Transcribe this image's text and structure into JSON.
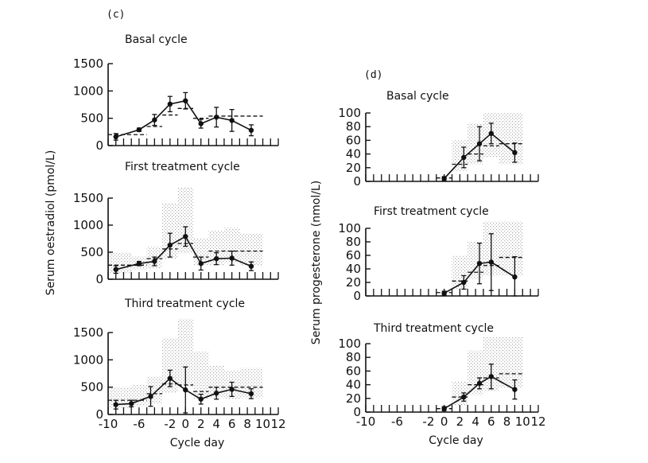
{
  "chart_data": [
    {
      "panel": "(c)",
      "type": "line",
      "title": "Basal cycle",
      "ylabel": "Serum oestradiol (pmol/L)",
      "xlabel": "",
      "ylim": [
        0,
        1500
      ],
      "yticks": [
        0,
        500,
        1000,
        1500
      ],
      "xlim": [
        -10,
        12
      ],
      "points": [
        {
          "x": -9,
          "y": 160,
          "err": 60
        },
        {
          "x": -6,
          "y": 290,
          "err": 30
        },
        {
          "x": -4,
          "y": 470,
          "err": 100
        },
        {
          "x": -2,
          "y": 760,
          "err": 140
        },
        {
          "x": 0,
          "y": 820,
          "err": 150
        },
        {
          "x": 2,
          "y": 400,
          "err": 80
        },
        {
          "x": 4,
          "y": 520,
          "err": 180
        },
        {
          "x": 6,
          "y": 460,
          "err": 200
        },
        {
          "x": 8.5,
          "y": 280,
          "err": 100
        }
      ],
      "dashed_steps": [
        {
          "x0": -10,
          "x1": -5,
          "y": 200
        },
        {
          "x0": -5,
          "x1": -3,
          "y": 350
        },
        {
          "x0": -3,
          "x1": -1,
          "y": 560
        },
        {
          "x0": -1,
          "x1": 1,
          "y": 680
        },
        {
          "x0": 1,
          "x1": 3,
          "y": 500
        },
        {
          "x0": 3,
          "x1": 10,
          "y": 540
        }
      ],
      "shaded": []
    },
    {
      "panel": "",
      "type": "line",
      "title": "First treatment cycle",
      "ylabel": "",
      "xlabel": "",
      "ylim": [
        0,
        1500
      ],
      "yticks": [
        0,
        500,
        1000,
        1500
      ],
      "xlim": [
        -10,
        12
      ],
      "points": [
        {
          "x": -9,
          "y": 180,
          "err": 70
        },
        {
          "x": -6,
          "y": 290,
          "err": 40
        },
        {
          "x": -4,
          "y": 330,
          "err": 80
        },
        {
          "x": -2,
          "y": 630,
          "err": 220
        },
        {
          "x": 0,
          "y": 790,
          "err": 180
        },
        {
          "x": 2,
          "y": 290,
          "err": 120
        },
        {
          "x": 4,
          "y": 380,
          "err": 110
        },
        {
          "x": 6,
          "y": 390,
          "err": 130
        },
        {
          "x": 8.5,
          "y": 240,
          "err": 80
        }
      ],
      "dashed_steps": [
        {
          "x0": -10,
          "x1": -5,
          "y": 260
        },
        {
          "x0": -5,
          "x1": -3,
          "y": 380
        },
        {
          "x0": -3,
          "x1": -1,
          "y": 560
        },
        {
          "x0": -1,
          "x1": 1,
          "y": 660
        },
        {
          "x0": 1,
          "x1": 3,
          "y": 410
        },
        {
          "x0": 3,
          "x1": 10,
          "y": 520
        }
      ],
      "shaded": [
        {
          "x0": -10,
          "x1": -7,
          "y0": 100,
          "y1": 500
        },
        {
          "x0": -7,
          "x1": -5,
          "y0": 180,
          "y1": 420
        },
        {
          "x0": -5,
          "x1": -3,
          "y0": 200,
          "y1": 600
        },
        {
          "x0": -3,
          "x1": -1,
          "y0": 380,
          "y1": 1400
        },
        {
          "x0": -1,
          "x1": 1,
          "y0": 480,
          "y1": 1700
        },
        {
          "x0": 1,
          "x1": 3,
          "y0": 250,
          "y1": 750
        },
        {
          "x0": 3,
          "x1": 5,
          "y0": 250,
          "y1": 900
        },
        {
          "x0": 5,
          "x1": 7,
          "y0": 300,
          "y1": 950
        },
        {
          "x0": 7,
          "x1": 10,
          "y0": 250,
          "y1": 850
        }
      ]
    },
    {
      "panel": "",
      "type": "line",
      "title": "Third treatment cycle",
      "ylabel": "",
      "xlabel": "Cycle day",
      "ylim": [
        0,
        1500
      ],
      "yticks": [
        0,
        500,
        1000,
        1500
      ],
      "xlim": [
        -10,
        12
      ],
      "xticks": [
        -10,
        -6,
        -2,
        0,
        2,
        4,
        6,
        8,
        10,
        12
      ],
      "points": [
        {
          "x": -9,
          "y": 180,
          "err": 80
        },
        {
          "x": -7,
          "y": 200,
          "err": 60
        },
        {
          "x": -4.5,
          "y": 330,
          "err": 180
        },
        {
          "x": -2,
          "y": 660,
          "err": 150
        },
        {
          "x": 0,
          "y": 450,
          "err": 420
        },
        {
          "x": 2,
          "y": 280,
          "err": 90
        },
        {
          "x": 4,
          "y": 390,
          "err": 110
        },
        {
          "x": 6,
          "y": 460,
          "err": 130
        },
        {
          "x": 8.5,
          "y": 380,
          "err": 90
        }
      ],
      "dashed_steps": [
        {
          "x0": -10,
          "x1": -5,
          "y": 260
        },
        {
          "x0": -5,
          "x1": -3,
          "y": 380
        },
        {
          "x0": -3,
          "x1": -1,
          "y": 560
        },
        {
          "x0": -1,
          "x1": 1,
          "y": 540
        },
        {
          "x0": 1,
          "x1": 3,
          "y": 420
        },
        {
          "x0": 3,
          "x1": 10,
          "y": 500
        }
      ],
      "shaded": [
        {
          "x0": -10,
          "x1": -7,
          "y0": 120,
          "y1": 500
        },
        {
          "x0": -7,
          "x1": -5,
          "y0": 150,
          "y1": 550
        },
        {
          "x0": -5,
          "x1": -3,
          "y0": 200,
          "y1": 700
        },
        {
          "x0": -3,
          "x1": -1,
          "y0": 400,
          "y1": 1400
        },
        {
          "x0": -1,
          "x1": 1,
          "y0": 500,
          "y1": 1750
        },
        {
          "x0": 1,
          "x1": 3,
          "y0": 280,
          "y1": 1150
        },
        {
          "x0": 3,
          "x1": 5,
          "y0": 300,
          "y1": 900
        },
        {
          "x0": 5,
          "x1": 7,
          "y0": 280,
          "y1": 800
        },
        {
          "x0": 7,
          "x1": 10,
          "y0": 300,
          "y1": 850
        }
      ]
    },
    {
      "panel": "(d)",
      "type": "line",
      "title": "Basal cycle",
      "ylabel": "Serum progesterone (nmol/L)",
      "xlabel": "",
      "ylim": [
        0,
        100
      ],
      "yticks": [
        0,
        20,
        40,
        60,
        80,
        100
      ],
      "xlim": [
        -10,
        12
      ],
      "points": [
        {
          "x": 0,
          "y": 4,
          "err": 3
        },
        {
          "x": 2.5,
          "y": 35,
          "err": 15
        },
        {
          "x": 4.5,
          "y": 55,
          "err": 25
        },
        {
          "x": 6,
          "y": 70,
          "err": 15
        },
        {
          "x": 9,
          "y": 42,
          "err": 14
        }
      ],
      "dashed_steps": [
        {
          "x0": -1,
          "x1": 1,
          "y": 5
        },
        {
          "x0": 1,
          "x1": 3,
          "y": 25
        },
        {
          "x0": 3,
          "x1": 5,
          "y": 40
        },
        {
          "x0": 5,
          "x1": 7,
          "y": 52
        },
        {
          "x0": 7,
          "x1": 10,
          "y": 55
        }
      ],
      "shaded": [
        {
          "x0": 1,
          "x1": 3,
          "y0": 15,
          "y1": 60
        },
        {
          "x0": 3,
          "x1": 5,
          "y0": 25,
          "y1": 85
        },
        {
          "x0": 5,
          "x1": 7,
          "y0": 35,
          "y1": 100
        },
        {
          "x0": 7,
          "x1": 10,
          "y0": 25,
          "y1": 100
        }
      ]
    },
    {
      "panel": "",
      "type": "line",
      "title": "First treatment cycle",
      "ylabel": "",
      "xlabel": "",
      "ylim": [
        0,
        100
      ],
      "yticks": [
        0,
        20,
        40,
        60,
        80,
        100
      ],
      "xlim": [
        -10,
        12
      ],
      "points": [
        {
          "x": 0,
          "y": 4,
          "err": 3
        },
        {
          "x": 2.5,
          "y": 20,
          "err": 10
        },
        {
          "x": 4.5,
          "y": 48,
          "err": 30
        },
        {
          "x": 6,
          "y": 50,
          "err": 42
        },
        {
          "x": 9,
          "y": 28,
          "err": 30
        }
      ],
      "dashed_steps": [
        {
          "x0": -1,
          "x1": 1,
          "y": 5
        },
        {
          "x0": 1,
          "x1": 3,
          "y": 22
        },
        {
          "x0": 3,
          "x1": 5,
          "y": 35
        },
        {
          "x0": 5,
          "x1": 7,
          "y": 45
        },
        {
          "x0": 7,
          "x1": 10,
          "y": 57
        }
      ],
      "shaded": [
        {
          "x0": 1,
          "x1": 3,
          "y0": 10,
          "y1": 60
        },
        {
          "x0": 3,
          "x1": 5,
          "y0": 25,
          "y1": 80
        },
        {
          "x0": 5,
          "x1": 7,
          "y0": 30,
          "y1": 110
        },
        {
          "x0": 7,
          "x1": 10,
          "y0": 30,
          "y1": 110
        }
      ]
    },
    {
      "panel": "",
      "type": "line",
      "title": "Third treatment cycle",
      "ylabel": "",
      "xlabel": "Cycle day",
      "ylim": [
        0,
        100
      ],
      "yticks": [
        0,
        20,
        40,
        60,
        80,
        100
      ],
      "xlim": [
        -10,
        12
      ],
      "xticks": [
        -10,
        -6,
        -2,
        0,
        2,
        4,
        6,
        8,
        10,
        12
      ],
      "points": [
        {
          "x": 0,
          "y": 5,
          "err": 3
        },
        {
          "x": 2.5,
          "y": 22,
          "err": 6
        },
        {
          "x": 4.5,
          "y": 42,
          "err": 8
        },
        {
          "x": 6,
          "y": 52,
          "err": 18
        },
        {
          "x": 9,
          "y": 33,
          "err": 14
        }
      ],
      "dashed_steps": [
        {
          "x0": -1,
          "x1": 1,
          "y": 5
        },
        {
          "x0": 1,
          "x1": 3,
          "y": 22
        },
        {
          "x0": 3,
          "x1": 5,
          "y": 40
        },
        {
          "x0": 5,
          "x1": 7,
          "y": 50
        },
        {
          "x0": 7,
          "x1": 10,
          "y": 56
        }
      ],
      "shaded": [
        {
          "x0": 1,
          "x1": 3,
          "y0": 10,
          "y1": 45
        },
        {
          "x0": 3,
          "x1": 5,
          "y0": 25,
          "y1": 90
        },
        {
          "x0": 5,
          "x1": 7,
          "y0": 30,
          "y1": 110
        },
        {
          "x0": 7,
          "x1": 10,
          "y0": 35,
          "y1": 110
        }
      ]
    }
  ]
}
